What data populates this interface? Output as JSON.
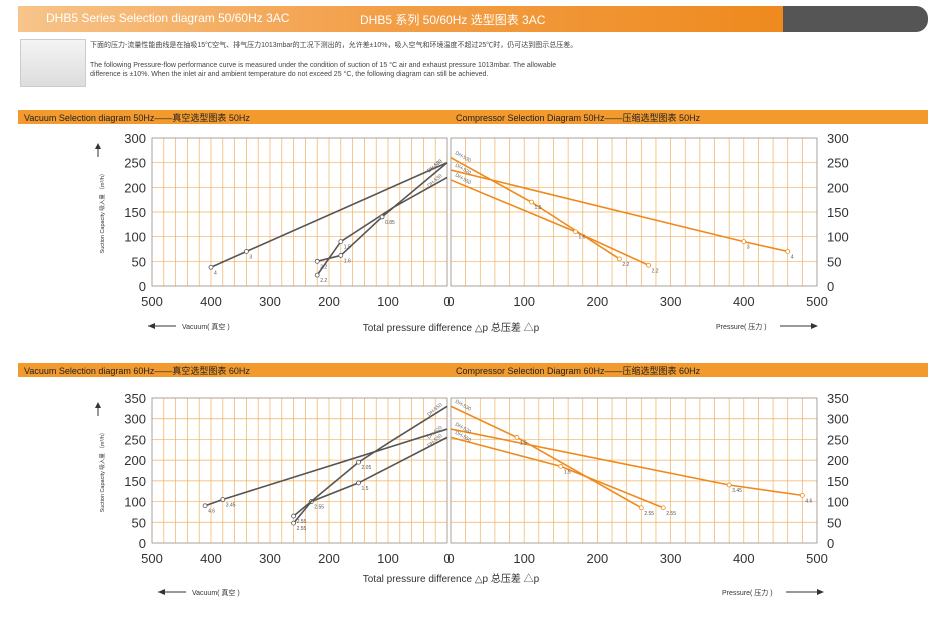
{
  "header": {
    "title_en": "DHB5 Series Selection diagram 50/60Hz 3AC",
    "title_cn": "DHB5 系列 50/60Hz 选型图表 3AC"
  },
  "colors": {
    "accent": "#f29a2e",
    "vacuum_line": "#555555",
    "compressor_line": "#ee8a1e",
    "grid": "#f0b060"
  },
  "intro": {
    "cn": "下面的压力-流量性能曲线是在抽吸15℃空气、排气压力1013mbar的工况下测出的，允许差±10%，吸入空气和环境温度不超过25℃时，仍可达到图示总压差。",
    "en_1": "The following Pressure-flow performance curve is measured under the condition of suction of 15 °C air and exhaust pressure 1013mbar. The allowable",
    "en_2": "difference is ±10%. When the inlet air and ambient temperature do not exceed 25 °C, the following diagram can still be achieved."
  },
  "labels": {
    "vac50": "Vacuum Selection diagram 50Hz——真空选型图表 50Hz",
    "comp50": "Compressor Selection Diagram 50Hz——压缩选型图表 50Hz",
    "vac60": "Vacuum Selection diagram 60Hz——真空选型图表 60Hz",
    "comp60": "Compressor Selection Diagram 60Hz——压缩选型图表 60Hz",
    "ylabel": "Suction Capacity 吸入量 （m³/h）",
    "xlabel": "Total pressure difference △p 总压差 △p",
    "vacuum_axis": "Vacuum( 真空 )",
    "pressure_axis": "Pressure( 压力 )"
  },
  "chart_data": [
    {
      "type": "line",
      "name": "vac50",
      "xlim": [
        500,
        0
      ],
      "ylim": [
        0,
        300
      ],
      "xticks": [
        500,
        400,
        300,
        200,
        100,
        0
      ],
      "yticks": [
        0,
        50,
        100,
        150,
        200,
        250,
        300
      ],
      "series": [
        {
          "name": "DH-520",
          "points": [
            [
              400,
              38
            ],
            [
              340,
              70
            ],
            [
              0,
              250
            ]
          ],
          "labels": [
            "4",
            "3",
            ""
          ]
        },
        {
          "name": "DH-530",
          "points": [
            [
              220,
              22
            ],
            [
              180,
              90
            ],
            [
              90,
              160
            ],
            [
              0,
              220
            ]
          ],
          "labels": [
            "2.2",
            "1.5",
            "",
            ""
          ]
        },
        {
          "name": "DH-550",
          "points": [
            [
              220,
              50
            ],
            [
              180,
              62
            ],
            [
              110,
              140
            ],
            [
              0,
              250
            ]
          ],
          "labels": [
            "2.2",
            "1.6",
            "0.85",
            ""
          ]
        }
      ]
    },
    {
      "type": "line",
      "name": "comp50",
      "xlim": [
        0,
        500
      ],
      "ylim": [
        0,
        300
      ],
      "xticks": [
        0,
        100,
        200,
        300,
        400,
        500
      ],
      "yticks": [
        0,
        50,
        100,
        150,
        200,
        250,
        300
      ],
      "series": [
        {
          "name": "DH-520",
          "points": [
            [
              0,
              235
            ],
            [
              400,
              90
            ],
            [
              460,
              70
            ]
          ],
          "labels": [
            "",
            "3",
            "4"
          ]
        },
        {
          "name": "DH-530",
          "points": [
            [
              0,
              260
            ],
            [
              110,
              170
            ],
            [
              230,
              55
            ]
          ],
          "labels": [
            "",
            "1.5",
            "2.2"
          ]
        },
        {
          "name": "DH-550",
          "points": [
            [
              0,
              215
            ],
            [
              170,
              110
            ],
            [
              270,
              42
            ]
          ],
          "labels": [
            "",
            "1.6",
            "2.2"
          ]
        }
      ]
    },
    {
      "type": "line",
      "name": "vac60",
      "xlim": [
        500,
        0
      ],
      "ylim": [
        0,
        350
      ],
      "xticks": [
        500,
        400,
        300,
        200,
        100,
        0
      ],
      "yticks": [
        0,
        50,
        100,
        150,
        200,
        250,
        300,
        350
      ],
      "series": [
        {
          "name": "DH-520",
          "points": [
            [
              410,
              90
            ],
            [
              380,
              105
            ],
            [
              0,
              275
            ]
          ],
          "labels": [
            "4.6",
            "3.45",
            ""
          ]
        },
        {
          "name": "DH-530",
          "points": [
            [
              260,
              48
            ],
            [
              230,
              100
            ],
            [
              150,
              145
            ],
            [
              0,
              255
            ]
          ],
          "labels": [
            "2.55",
            "2.55",
            "1.5",
            ""
          ]
        },
        {
          "name": "DH-550",
          "points": [
            [
              260,
              65
            ],
            [
              150,
              195
            ],
            [
              90,
              250
            ],
            [
              0,
              330
            ]
          ],
          "labels": [
            "2.55",
            "2.05",
            "",
            ""
          ]
        }
      ]
    },
    {
      "type": "line",
      "name": "comp60",
      "xlim": [
        0,
        500
      ],
      "ylim": [
        0,
        350
      ],
      "xticks": [
        0,
        100,
        200,
        300,
        400,
        500
      ],
      "yticks": [
        0,
        50,
        100,
        150,
        200,
        250,
        300,
        350
      ],
      "series": [
        {
          "name": "DH-520",
          "points": [
            [
              0,
              275
            ],
            [
              380,
              140
            ],
            [
              480,
              115
            ]
          ],
          "labels": [
            "",
            "3.45",
            "4.6"
          ]
        },
        {
          "name": "DH-530",
          "points": [
            [
              0,
              330
            ],
            [
              90,
              255
            ],
            [
              260,
              85
            ]
          ],
          "labels": [
            "",
            "1.5",
            "2.55"
          ]
        },
        {
          "name": "DH-550",
          "points": [
            [
              0,
              255
            ],
            [
              150,
              185
            ],
            [
              290,
              85
            ]
          ],
          "labels": [
            "",
            "1.5",
            "2.55"
          ]
        }
      ]
    }
  ]
}
